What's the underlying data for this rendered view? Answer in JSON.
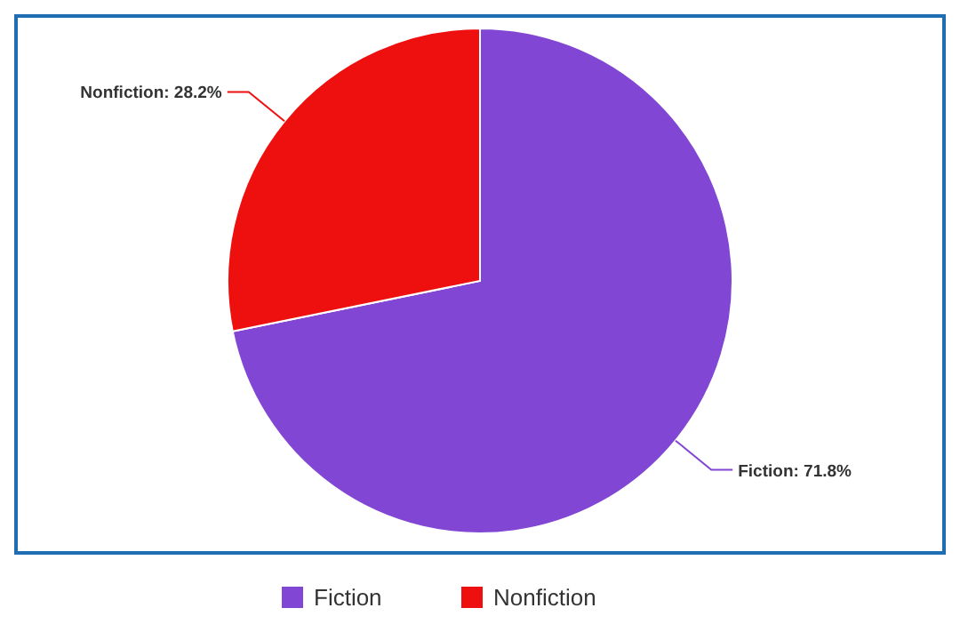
{
  "chart_data": {
    "type": "pie",
    "categories": [
      "Fiction",
      "Nonfiction"
    ],
    "values": [
      71.8,
      28.2
    ],
    "colors": [
      "#8146d4",
      "#ee0f0f"
    ],
    "value_labels": [
      "Fiction: 71.8%",
      "Nonfiction: 28.2%"
    ],
    "legend": "bottom"
  }
}
